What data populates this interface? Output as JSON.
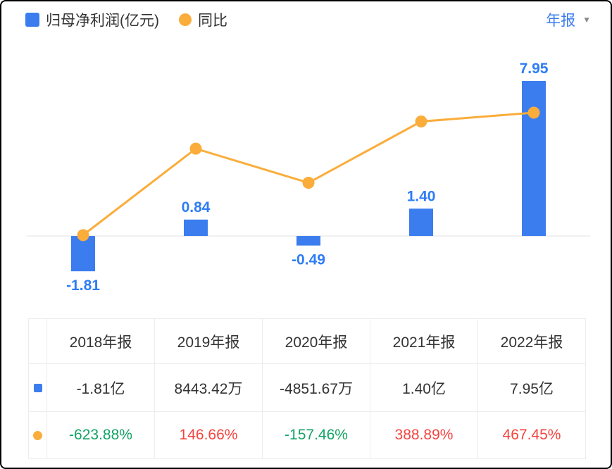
{
  "colors": {
    "bar": "#3B7DEE",
    "bar_label": "#2E7CF6",
    "line": "#FAAD3B",
    "zero_line": "#EBEBEB",
    "text_dark": "#333333",
    "yoy_negative_green": "#12A364",
    "yoy_positive_red": "#F4443F",
    "dropdown_text": "#3B7DEE",
    "dropdown_arrow": "#8A8A8A",
    "table_border": "#ECECEC"
  },
  "legend": {
    "bar_series_label": "归母净利润(亿元)",
    "line_series_label": "同比"
  },
  "period_selector": {
    "label": "年报",
    "arrow": "▼"
  },
  "chart_data": {
    "type": "bar+line",
    "categories": [
      "2018年报",
      "2019年报",
      "2020年报",
      "2021年报",
      "2022年报"
    ],
    "series": [
      {
        "name": "归母净利润(亿元)",
        "type": "bar",
        "values": [
          -1.81,
          0.84,
          -0.49,
          1.4,
          7.95
        ],
        "labels": [
          "-1.81",
          "0.84",
          "-0.49",
          "1.40",
          "7.95"
        ]
      },
      {
        "name": "同比",
        "type": "line",
        "values": [
          -623.88,
          146.66,
          -157.46,
          388.89,
          467.45
        ]
      }
    ],
    "bar_axis_range": [
      -3.5,
      9.5
    ],
    "line_axis_range": [
      -1240,
      1020
    ],
    "grid": "zero-line-only",
    "legend_position": "top-left",
    "title": "",
    "xlabel": "",
    "ylabel": ""
  },
  "table": {
    "headers": [
      "2018年报",
      "2019年报",
      "2020年报",
      "2021年报",
      "2022年报"
    ],
    "rows": [
      {
        "marker": "blue-square",
        "values": [
          "-1.81亿",
          "8443.42万",
          "-4851.67万",
          "1.40亿",
          "7.95亿"
        ]
      },
      {
        "marker": "orange-dot",
        "values": [
          "-623.88%",
          "146.66%",
          "-157.46%",
          "388.89%",
          "467.45%"
        ]
      }
    ]
  }
}
